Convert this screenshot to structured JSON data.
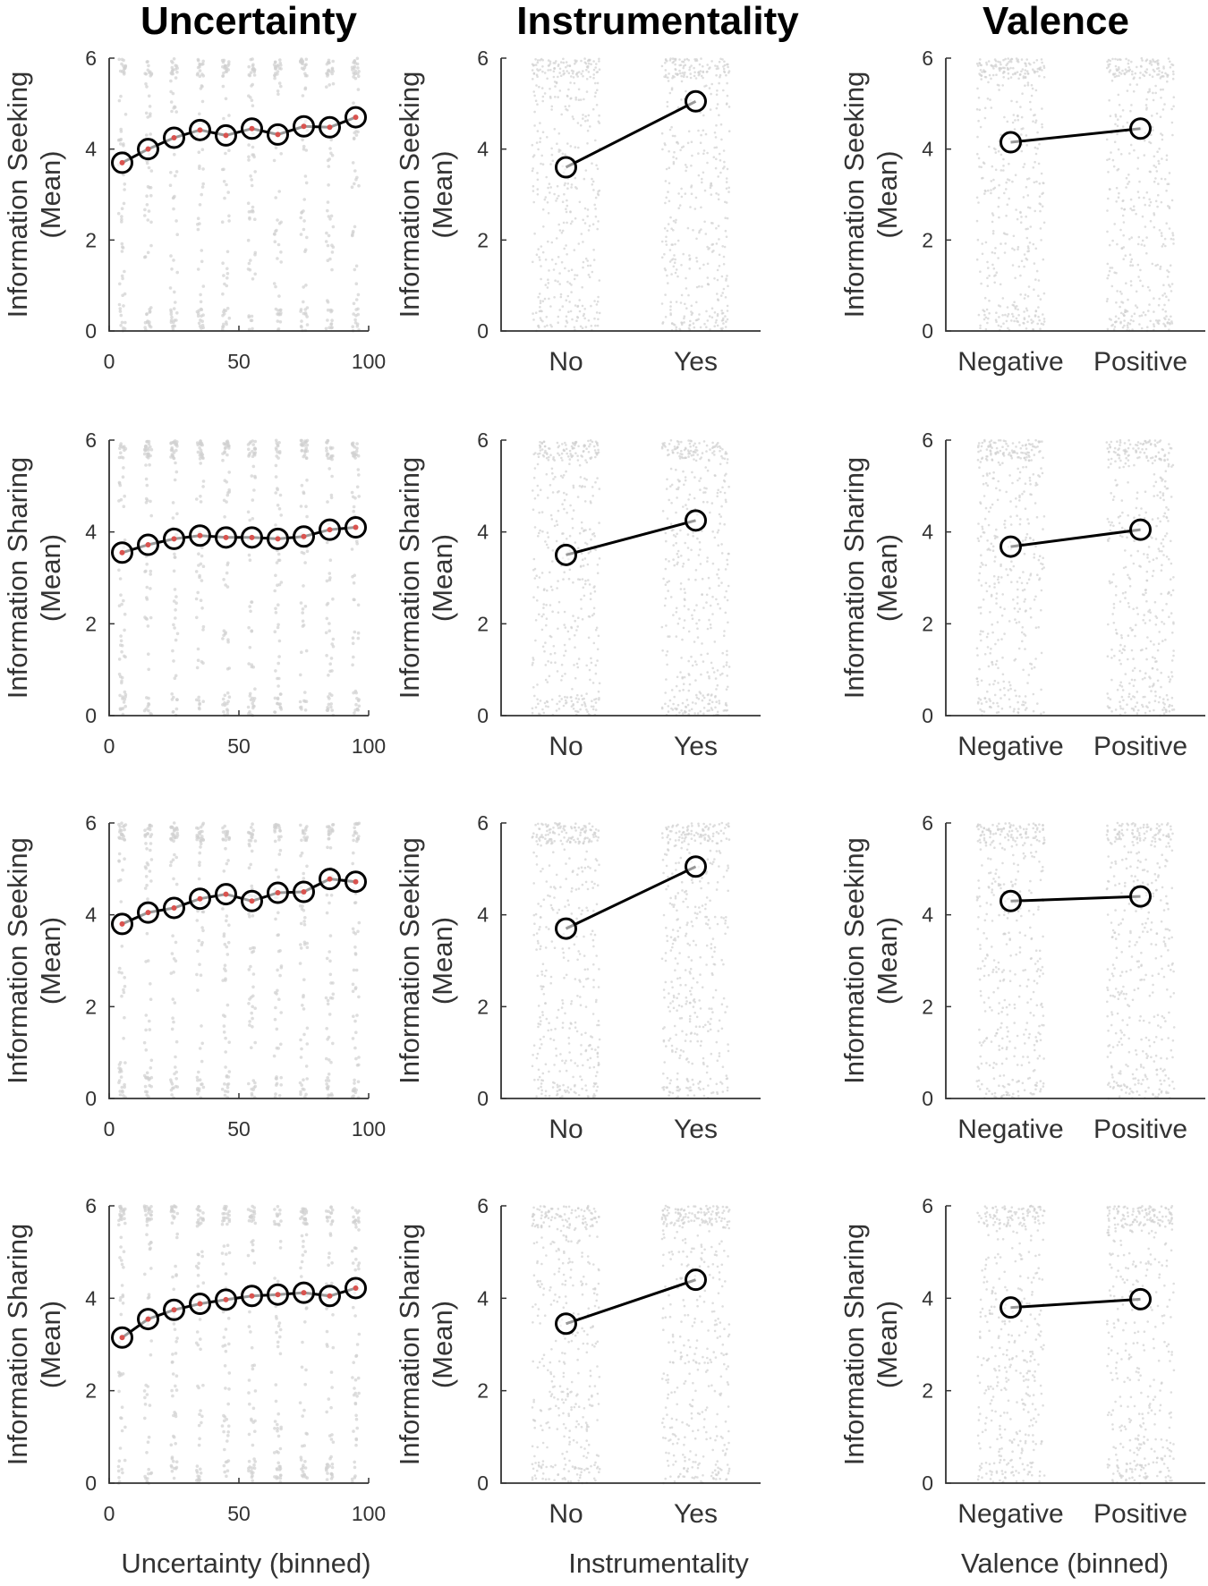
{
  "colors": {
    "line": "#000000",
    "marker_edge": "#000000",
    "marker_center": "#d9534f",
    "scatter": "#d0d0d0",
    "axis": "#333333"
  },
  "column_titles": [
    "Uncertainty",
    "Instrumentality",
    "Valence"
  ],
  "x_axis_titles": [
    "Uncertainty (binned)",
    "Instrumentality",
    "Valence (binned)"
  ],
  "row_labels": [
    [
      "Information Seeking",
      "(Mean)"
    ],
    [
      "Information Sharing",
      "(Mean)"
    ],
    [
      "Information Seeking",
      "(Mean)"
    ],
    [
      "Information Sharing",
      "(Mean)"
    ]
  ],
  "chart_data": [
    {
      "type": "line",
      "row": 0,
      "col": 0,
      "title": "Uncertainty",
      "ylabel": "Information Seeking (Mean)",
      "x": [
        5,
        15,
        25,
        35,
        45,
        55,
        65,
        75,
        85,
        95
      ],
      "values": [
        3.7,
        4.0,
        4.25,
        4.42,
        4.3,
        4.45,
        4.32,
        4.5,
        4.48,
        4.7
      ],
      "xlim": [
        0,
        100
      ],
      "ylim": [
        0,
        6
      ],
      "xticks": [
        "0",
        "50",
        "100"
      ],
      "yticks": [
        "0",
        "2",
        "4",
        "6"
      ]
    },
    {
      "type": "line",
      "row": 0,
      "col": 1,
      "title": "Instrumentality",
      "ylabel": "Information Seeking (Mean)",
      "categories": [
        "No",
        "Yes"
      ],
      "values": [
        3.6,
        5.05
      ],
      "ylim": [
        0,
        6
      ],
      "yticks": [
        "0",
        "2",
        "4",
        "6"
      ]
    },
    {
      "type": "line",
      "row": 0,
      "col": 2,
      "title": "Valence",
      "ylabel": "Information Seeking (Mean)",
      "categories": [
        "Negative",
        "Positive"
      ],
      "values": [
        4.15,
        4.45
      ],
      "ylim": [
        0,
        6
      ],
      "yticks": [
        "0",
        "2",
        "4",
        "6"
      ]
    },
    {
      "type": "line",
      "row": 1,
      "col": 0,
      "ylabel": "Information Sharing (Mean)",
      "x": [
        5,
        15,
        25,
        35,
        45,
        55,
        65,
        75,
        85,
        95
      ],
      "values": [
        3.55,
        3.72,
        3.85,
        3.92,
        3.88,
        3.88,
        3.85,
        3.9,
        4.05,
        4.1
      ],
      "xlim": [
        0,
        100
      ],
      "ylim": [
        0,
        6
      ],
      "xticks": [
        "0",
        "50",
        "100"
      ],
      "yticks": [
        "0",
        "2",
        "4",
        "6"
      ]
    },
    {
      "type": "line",
      "row": 1,
      "col": 1,
      "ylabel": "Information Sharing (Mean)",
      "categories": [
        "No",
        "Yes"
      ],
      "values": [
        3.5,
        4.25
      ],
      "ylim": [
        0,
        6
      ],
      "yticks": [
        "0",
        "2",
        "4",
        "6"
      ]
    },
    {
      "type": "line",
      "row": 1,
      "col": 2,
      "ylabel": "Information Sharing (Mean)",
      "categories": [
        "Negative",
        "Positive"
      ],
      "values": [
        3.68,
        4.05
      ],
      "ylim": [
        0,
        6
      ],
      "yticks": [
        "0",
        "2",
        "4",
        "6"
      ]
    },
    {
      "type": "line",
      "row": 2,
      "col": 0,
      "ylabel": "Information Seeking (Mean)",
      "x": [
        5,
        15,
        25,
        35,
        45,
        55,
        65,
        75,
        85,
        95
      ],
      "values": [
        3.8,
        4.05,
        4.15,
        4.35,
        4.45,
        4.3,
        4.48,
        4.5,
        4.78,
        4.72
      ],
      "xlim": [
        0,
        100
      ],
      "ylim": [
        0,
        6
      ],
      "xticks": [
        "0",
        "50",
        "100"
      ],
      "yticks": [
        "0",
        "2",
        "4",
        "6"
      ]
    },
    {
      "type": "line",
      "row": 2,
      "col": 1,
      "ylabel": "Information Seeking (Mean)",
      "categories": [
        "No",
        "Yes"
      ],
      "values": [
        3.7,
        5.05
      ],
      "ylim": [
        0,
        6
      ],
      "yticks": [
        "0",
        "2",
        "4",
        "6"
      ]
    },
    {
      "type": "line",
      "row": 2,
      "col": 2,
      "ylabel": "Information Seeking (Mean)",
      "categories": [
        "Negative",
        "Positive"
      ],
      "values": [
        4.3,
        4.4
      ],
      "ylim": [
        0,
        6
      ],
      "yticks": [
        "0",
        "2",
        "4",
        "6"
      ]
    },
    {
      "type": "line",
      "row": 3,
      "col": 0,
      "title": "",
      "xlabel": "Uncertainty (binned)",
      "ylabel": "Information Sharing (Mean)",
      "x": [
        5,
        15,
        25,
        35,
        45,
        55,
        65,
        75,
        85,
        95
      ],
      "values": [
        3.15,
        3.55,
        3.75,
        3.88,
        3.97,
        4.05,
        4.08,
        4.12,
        4.05,
        4.22
      ],
      "xlim": [
        0,
        100
      ],
      "ylim": [
        0,
        6
      ],
      "xticks": [
        "0",
        "50",
        "100"
      ],
      "yticks": [
        "0",
        "2",
        "4",
        "6"
      ]
    },
    {
      "type": "line",
      "row": 3,
      "col": 1,
      "xlabel": "Instrumentality",
      "ylabel": "Information Sharing (Mean)",
      "categories": [
        "No",
        "Yes"
      ],
      "values": [
        3.45,
        4.4
      ],
      "ylim": [
        0,
        6
      ],
      "yticks": [
        "0",
        "2",
        "4",
        "6"
      ]
    },
    {
      "type": "line",
      "row": 3,
      "col": 2,
      "xlabel": "Valence (binned)",
      "ylabel": "Information Sharing (Mean)",
      "categories": [
        "Negative",
        "Positive"
      ],
      "values": [
        3.8,
        3.98
      ],
      "ylim": [
        0,
        6
      ],
      "yticks": [
        "0",
        "2",
        "4",
        "6"
      ]
    }
  ]
}
